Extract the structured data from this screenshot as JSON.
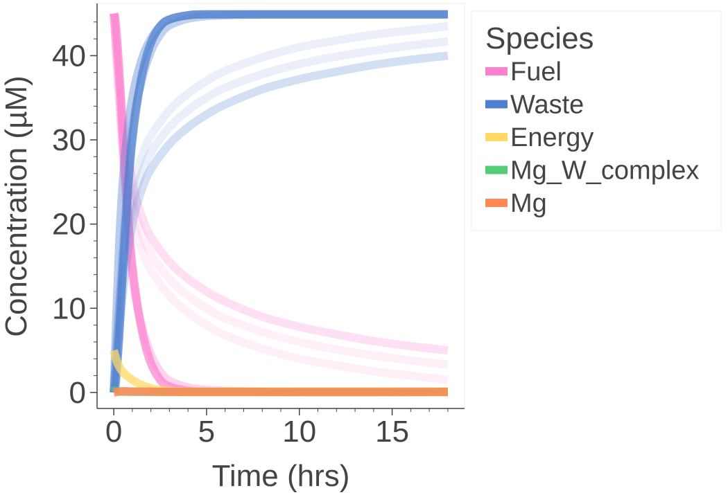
{
  "chart_data": {
    "type": "line",
    "xlabel": "Time (hrs)",
    "ylabel": "Concentration (µM)",
    "xlim": [
      -0.9,
      18.9
    ],
    "ylim": [
      -1.9,
      46.2
    ],
    "x_ticks": [
      0,
      5,
      10,
      15
    ],
    "y_ticks": [
      0,
      10,
      20,
      30,
      40
    ],
    "grid": false,
    "legend": {
      "title": "Species",
      "placement": "right",
      "entries": [
        {
          "name": "Fuel",
          "color": "#ff7fcf"
        },
        {
          "name": "Waste",
          "color": "#4f7fcf"
        },
        {
          "name": "Energy",
          "color": "#ffd966"
        },
        {
          "name": "Mg_W_complex",
          "color": "#55cc77"
        },
        {
          "name": "Mg",
          "color": "#ff8855"
        }
      ]
    },
    "series": [
      {
        "species": "Fuel",
        "color": "#ff7fcf",
        "opacity": 0.25,
        "x": [
          0,
          0.5,
          1,
          1.5,
          2,
          3,
          4,
          5,
          6,
          8,
          10,
          12,
          14,
          16,
          18
        ],
        "y": [
          45,
          33,
          25,
          21,
          18.5,
          15.5,
          13.5,
          12,
          10.8,
          9,
          7.8,
          6.9,
          6.1,
          5.5,
          5.0
        ]
      },
      {
        "species": "Fuel",
        "color": "#ff7fcf",
        "opacity": 0.12,
        "x": [
          0,
          0.5,
          1,
          1.5,
          2,
          3,
          4,
          5,
          6,
          8,
          10,
          12,
          14,
          16,
          18
        ],
        "y": [
          45,
          31,
          23,
          19,
          16.5,
          13.5,
          11.5,
          10,
          8.8,
          7.2,
          6,
          5.1,
          4.4,
          3.8,
          3.3
        ]
      },
      {
        "species": "Fuel",
        "color": "#ff7fcf",
        "opacity": 0.12,
        "x": [
          0,
          0.5,
          1,
          1.5,
          2,
          3,
          4,
          5,
          6,
          8,
          10,
          12,
          14,
          16,
          18
        ],
        "y": [
          45,
          30,
          21,
          17,
          14.5,
          11.5,
          9.5,
          8,
          6.8,
          5.2,
          4,
          3.2,
          2.5,
          2.0,
          1.5
        ]
      },
      {
        "species": "Fuel",
        "color": "#ff7fcf",
        "opacity": 0.35,
        "x": [
          0,
          0.5,
          1,
          1.5,
          2,
          2.5,
          3,
          4,
          5,
          6,
          8,
          10,
          14,
          18
        ],
        "y": [
          45,
          28,
          14,
          8,
          4.5,
          2.5,
          1.4,
          0.6,
          0.3,
          0.2,
          0.1,
          0.1,
          0.1,
          0.1
        ]
      },
      {
        "species": "Fuel",
        "color": "#ff7fcf",
        "opacity": 0.7,
        "x": [
          0,
          0.1,
          0.3,
          0.5,
          0.8,
          1.0,
          1.3,
          1.6,
          2,
          2.5,
          3,
          4,
          5,
          8,
          18
        ],
        "y": [
          45,
          44,
          38,
          30,
          20,
          15,
          10,
          6.5,
          3.5,
          1.5,
          0.7,
          0.2,
          0.1,
          0.1,
          0.1
        ]
      },
      {
        "species": "Waste",
        "color": "#4f7fcf",
        "opacity": 0.25,
        "x": [
          0,
          0.5,
          1,
          1.5,
          2,
          3,
          4,
          5,
          6,
          8,
          10,
          12,
          14,
          16,
          18
        ],
        "y": [
          0,
          12,
          20,
          24,
          26.5,
          29.5,
          31.5,
          33,
          34.2,
          36,
          37.2,
          38.1,
          38.9,
          39.5,
          40
        ]
      },
      {
        "species": "Waste",
        "color": "#4f7fcf",
        "opacity": 0.12,
        "x": [
          0,
          0.5,
          1,
          1.5,
          2,
          3,
          4,
          5,
          6,
          8,
          10,
          12,
          14,
          16,
          18
        ],
        "y": [
          0,
          14,
          22,
          26,
          28.5,
          31.5,
          33.5,
          35,
          36.2,
          37.8,
          39,
          39.9,
          40.6,
          41.2,
          41.7
        ]
      },
      {
        "species": "Waste",
        "color": "#4f7fcf",
        "opacity": 0.12,
        "x": [
          0,
          0.5,
          1,
          1.5,
          2,
          3,
          4,
          5,
          6,
          8,
          10,
          12,
          14,
          16,
          18
        ],
        "y": [
          0,
          15,
          24,
          28,
          30.5,
          33.5,
          35.5,
          37,
          38.2,
          39.8,
          41,
          41.8,
          42.5,
          43,
          43.5
        ]
      },
      {
        "species": "Waste",
        "color": "#4f7fcf",
        "opacity": 0.35,
        "x": [
          0,
          0.5,
          1,
          1.5,
          2,
          2.5,
          3,
          4,
          5,
          6,
          8,
          10,
          14,
          18
        ],
        "y": [
          0,
          17,
          31,
          37,
          40.5,
          42.5,
          43.6,
          44.4,
          44.7,
          44.8,
          44.9,
          44.9,
          44.9,
          44.9
        ]
      },
      {
        "species": "Waste",
        "color": "#4f7fcf",
        "opacity": 0.7,
        "x": [
          0,
          0.1,
          0.3,
          0.5,
          0.8,
          1.0,
          1.3,
          1.6,
          2,
          2.5,
          3,
          4,
          5,
          8,
          18
        ],
        "y": [
          0,
          1,
          7,
          15,
          25,
          30,
          35,
          38.5,
          41.5,
          43.5,
          44.3,
          44.8,
          44.9,
          44.9,
          44.9
        ]
      },
      {
        "species": "Waste",
        "color": "#4f7fcf",
        "opacity": 0.4,
        "x": [
          0,
          0.3,
          0.6,
          1.0,
          1.5,
          2,
          2.5,
          3,
          4,
          5,
          8,
          18
        ],
        "y": [
          0,
          18,
          28,
          35,
          39.5,
          42,
          43.5,
          44.3,
          44.8,
          44.9,
          44.9,
          44.9
        ]
      },
      {
        "species": "Energy",
        "color": "#ffd966",
        "opacity": 0.75,
        "x": [
          0,
          0.2,
          0.5,
          1,
          1.5,
          2,
          2.5,
          3,
          4,
          5,
          8,
          18
        ],
        "y": [
          5,
          3.5,
          2.4,
          1.5,
          0.9,
          0.5,
          0.3,
          0.2,
          0.1,
          0.1,
          0.1,
          0.1
        ]
      },
      {
        "species": "Mg_W_complex",
        "color": "#55cc77",
        "opacity": 0.6,
        "x": [
          0,
          0.05,
          0.3,
          0.6,
          1,
          2,
          18
        ],
        "y": [
          0.05,
          0.25,
          0.15,
          0.1,
          0.08,
          0.05,
          0.05
        ]
      },
      {
        "species": "Mg",
        "color": "#ff8855",
        "opacity": 0.85,
        "x": [
          0,
          0.3,
          0.6,
          1,
          2,
          5,
          18
        ],
        "y": [
          0,
          0.1,
          0.15,
          0.12,
          0.1,
          0.05,
          0.05
        ]
      }
    ]
  }
}
